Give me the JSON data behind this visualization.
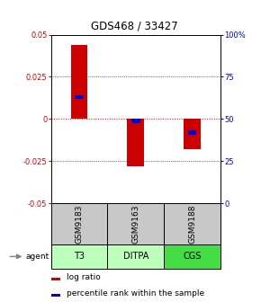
{
  "title": "GDS468 / 33427",
  "samples": [
    "GSM9183",
    "GSM9163",
    "GSM9188"
  ],
  "agents": [
    "T3",
    "DITPA",
    "CGS"
  ],
  "log_ratios": [
    0.044,
    -0.028,
    -0.018
  ],
  "percentile_ranks": [
    0.63,
    0.49,
    0.42
  ],
  "bar_color": "#cc0000",
  "pct_color": "#0000cc",
  "ylim_left": [
    -0.05,
    0.05
  ],
  "ylim_right": [
    0,
    1.0
  ],
  "yticks_left": [
    -0.05,
    -0.025,
    0,
    0.025,
    0.05
  ],
  "yticks_right": [
    0,
    0.25,
    0.5,
    0.75,
    1.0
  ],
  "ytick_labels_right": [
    "0",
    "25",
    "50",
    "75",
    "100%"
  ],
  "ytick_labels_left": [
    "-0.05",
    "-0.025",
    "0",
    "0.025",
    "0.05"
  ],
  "zero_line_color": "#cc0000",
  "sample_bg": "#c8c8c8",
  "agent_bg_colors": [
    "#bbffbb",
    "#bbffbb",
    "#44dd44"
  ],
  "bar_width": 0.3,
  "pct_bar_width": 0.15,
  "pct_bar_height": 0.0025
}
